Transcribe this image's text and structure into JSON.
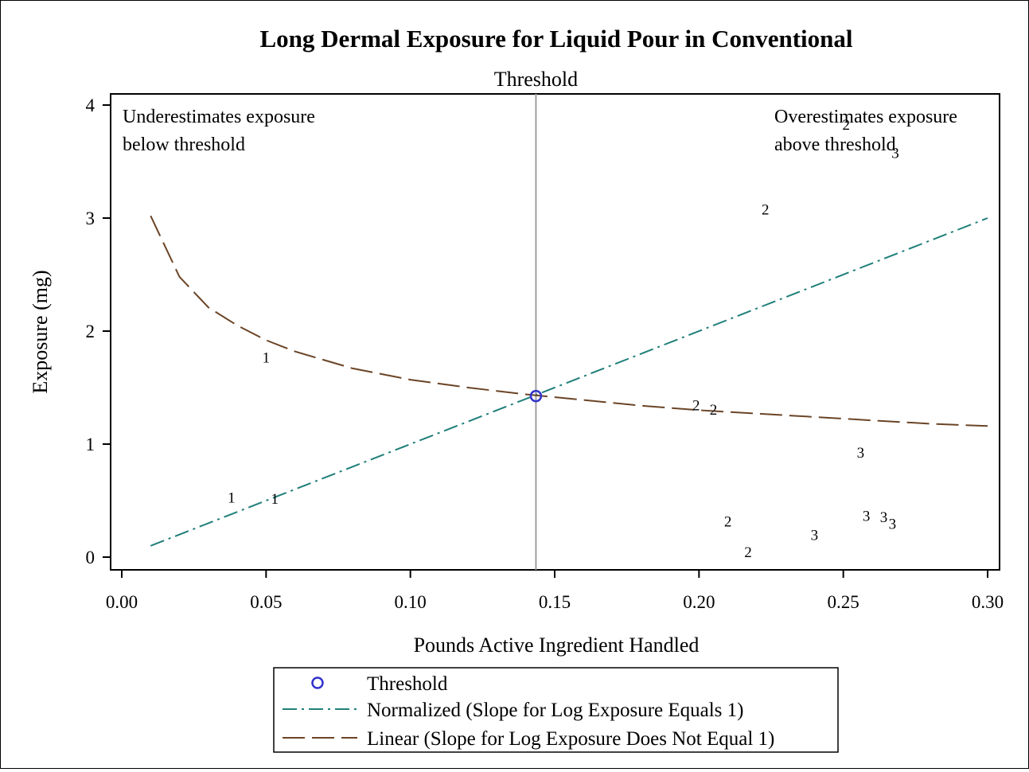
{
  "chart_data": {
    "type": "scatter",
    "title": "Long Dermal Exposure for Liquid Pour in Conventional",
    "xlabel": "Pounds Active Ingredient Handled",
    "ylabel": "Exposure (mg)",
    "xlim": [
      0.0,
      0.3
    ],
    "ylim": [
      0,
      4
    ],
    "xticks": [
      "0.00",
      "0.05",
      "0.10",
      "0.15",
      "0.20",
      "0.25",
      "0.30"
    ],
    "yticks": [
      "0",
      "1",
      "2",
      "3",
      "4"
    ],
    "threshold": {
      "x": 0.1435,
      "y": 1.425,
      "label": "Threshold"
    },
    "annotations": {
      "left": [
        "Underestimates exposure",
        "below threshold"
      ],
      "right": [
        "Overestimates exposure",
        "above threshold"
      ]
    },
    "points": [
      {
        "label": "1",
        "x": 0.05,
        "y": 1.77
      },
      {
        "label": "1",
        "x": 0.038,
        "y": 0.53
      },
      {
        "label": "1",
        "x": 0.053,
        "y": 0.52
      },
      {
        "label": "2",
        "x": 0.251,
        "y": 3.83
      },
      {
        "label": "2",
        "x": 0.223,
        "y": 3.08
      },
      {
        "label": "2",
        "x": 0.199,
        "y": 1.35
      },
      {
        "label": "2",
        "x": 0.205,
        "y": 1.31
      },
      {
        "label": "2",
        "x": 0.21,
        "y": 0.32
      },
      {
        "label": "2",
        "x": 0.217,
        "y": 0.05
      },
      {
        "label": "3",
        "x": 0.268,
        "y": 3.58
      },
      {
        "label": "3",
        "x": 0.256,
        "y": 0.93
      },
      {
        "label": "3",
        "x": 0.258,
        "y": 0.37
      },
      {
        "label": "3",
        "x": 0.264,
        "y": 0.36
      },
      {
        "label": "3",
        "x": 0.267,
        "y": 0.3
      },
      {
        "label": "3",
        "x": 0.24,
        "y": 0.2
      }
    ],
    "series": [
      {
        "name": "Normalized (Slope for Log Exposure Equals 1)",
        "color": "#1f7f7a",
        "dash": "dash-dot",
        "x": [
          0.01,
          0.3
        ],
        "y": [
          0.1,
          3.0
        ]
      },
      {
        "name": "Linear (Slope for Log Exposure Does Not Equal 1)",
        "color": "#6b4426",
        "dash": "long-dash",
        "x": [
          0.01,
          0.02,
          0.03,
          0.04,
          0.05,
          0.06,
          0.08,
          0.1,
          0.12,
          0.14,
          0.16,
          0.18,
          0.2,
          0.22,
          0.24,
          0.26,
          0.28,
          0.3
        ],
        "y": [
          3.02,
          2.48,
          2.21,
          2.05,
          1.92,
          1.82,
          1.67,
          1.57,
          1.5,
          1.44,
          1.39,
          1.34,
          1.3,
          1.27,
          1.24,
          1.21,
          1.18,
          1.16
        ]
      }
    ],
    "legend": {
      "position": "bottom",
      "items": [
        {
          "label": "Threshold",
          "symbol": "circle",
          "color": "#3333cc"
        },
        {
          "label": "Normalized (Slope for Log Exposure Equals 1)",
          "symbol": "dash-dot",
          "color": "#1f7f7a"
        },
        {
          "label": "Linear (Slope for Log Exposure Does Not Equal 1)",
          "symbol": "long-dash",
          "color": "#6b4426"
        }
      ]
    },
    "grid": false
  }
}
